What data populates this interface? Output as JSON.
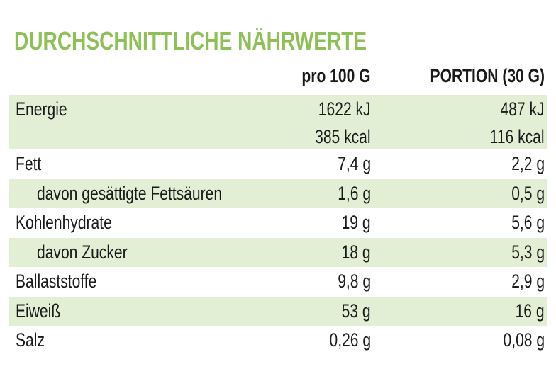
{
  "header": {
    "title": "DURCHSCHNITTLICHE NÄHRWERTE"
  },
  "table": {
    "columns": [
      "pro 100 G",
      "PORTION (30 G)"
    ],
    "rows": [
      {
        "label": "Energie",
        "per100": [
          "1622 kJ",
          "385 kcal"
        ],
        "portion": [
          "487 kJ",
          "116 kcal"
        ]
      },
      {
        "label": "Fett",
        "per100": [
          "7,4 g"
        ],
        "portion": [
          "2,2 g"
        ]
      },
      {
        "label": "davon gesättigte Fettsäuren",
        "per100": [
          "1,6 g"
        ],
        "portion": [
          "0,5 g"
        ]
      },
      {
        "label": "Kohlenhydrate",
        "per100": [
          "19 g"
        ],
        "portion": [
          "5,6 g"
        ]
      },
      {
        "label": "davon Zucker",
        "per100": [
          "18 g"
        ],
        "portion": [
          "5,3 g"
        ]
      },
      {
        "label": "Ballaststoffe",
        "per100": [
          "9,8 g"
        ],
        "portion": [
          "2,9 g"
        ]
      },
      {
        "label": "Eiweiß",
        "per100": [
          "53 g"
        ],
        "portion": [
          "16 g"
        ]
      },
      {
        "label": "Salz",
        "per100": [
          "0,26 g"
        ],
        "portion": [
          "0,08 g"
        ]
      }
    ]
  }
}
